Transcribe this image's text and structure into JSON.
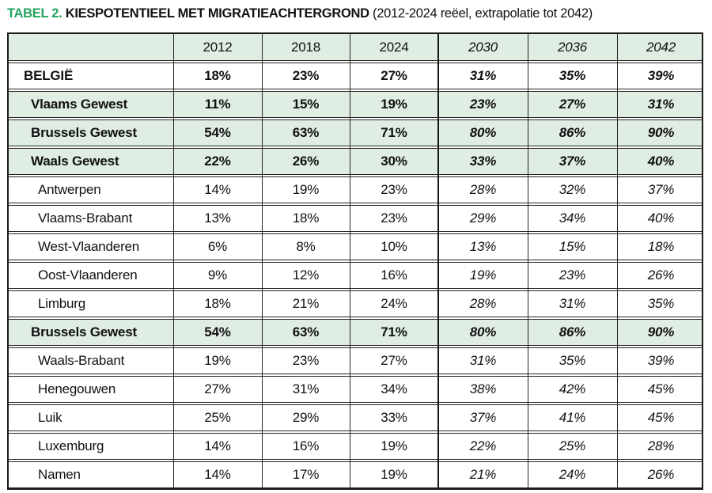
{
  "caption": {
    "tag": "TABEL 2.",
    "heading": "KIESPOTENTIEEL MET MIGRATIEACHTERGROND",
    "subtitle": "(2012-2024 reëel, extrapolatie tot 2042)"
  },
  "colors": {
    "accent_green": "#21a45d",
    "row_highlight_green": "#dfede3",
    "border": "#242424",
    "text": "#111111"
  },
  "table": {
    "column_headers": [
      "",
      "2012",
      "2018",
      "2024",
      "2030",
      "2036",
      "2042"
    ],
    "extrapolated_from_column_index": 4,
    "rows": [
      {
        "label": "BELGIË",
        "level": "country",
        "emphasis": "bold",
        "highlight": false,
        "values": [
          "18%",
          "23%",
          "27%",
          "31%",
          "35%",
          "39%"
        ]
      },
      {
        "label": "Vlaams Gewest",
        "level": "region",
        "emphasis": "bold",
        "highlight": true,
        "values": [
          "11%",
          "15%",
          "19%",
          "23%",
          "27%",
          "31%"
        ]
      },
      {
        "label": "Brussels Gewest",
        "level": "region",
        "emphasis": "bold",
        "highlight": true,
        "values": [
          "54%",
          "63%",
          "71%",
          "80%",
          "86%",
          "90%"
        ]
      },
      {
        "label": "Waals Gewest",
        "level": "region",
        "emphasis": "bold",
        "highlight": true,
        "values": [
          "22%",
          "26%",
          "30%",
          "33%",
          "37%",
          "40%"
        ]
      },
      {
        "label": "Antwerpen",
        "level": "province",
        "emphasis": "regular",
        "highlight": false,
        "values": [
          "14%",
          "19%",
          "23%",
          "28%",
          "32%",
          "37%"
        ]
      },
      {
        "label": "Vlaams-Brabant",
        "level": "province",
        "emphasis": "regular",
        "highlight": false,
        "values": [
          "13%",
          "18%",
          "23%",
          "29%",
          "34%",
          "40%"
        ]
      },
      {
        "label": "West-Vlaanderen",
        "level": "province",
        "emphasis": "regular",
        "highlight": false,
        "values": [
          "6%",
          "8%",
          "10%",
          "13%",
          "15%",
          "18%"
        ]
      },
      {
        "label": "Oost-Vlaanderen",
        "level": "province",
        "emphasis": "regular",
        "highlight": false,
        "values": [
          "9%",
          "12%",
          "16%",
          "19%",
          "23%",
          "26%"
        ]
      },
      {
        "label": "Limburg",
        "level": "province",
        "emphasis": "regular",
        "highlight": false,
        "values": [
          "18%",
          "21%",
          "24%",
          "28%",
          "31%",
          "35%"
        ]
      },
      {
        "label": "Brussels Gewest",
        "level": "region",
        "emphasis": "bold",
        "highlight": true,
        "values": [
          "54%",
          "63%",
          "71%",
          "80%",
          "86%",
          "90%"
        ]
      },
      {
        "label": "Waals-Brabant",
        "level": "province",
        "emphasis": "regular",
        "highlight": false,
        "values": [
          "19%",
          "23%",
          "27%",
          "31%",
          "35%",
          "39%"
        ]
      },
      {
        "label": "Henegouwen",
        "level": "province",
        "emphasis": "regular",
        "highlight": false,
        "values": [
          "27%",
          "31%",
          "34%",
          "38%",
          "42%",
          "45%"
        ]
      },
      {
        "label": "Luik",
        "level": "province",
        "emphasis": "regular",
        "highlight": false,
        "values": [
          "25%",
          "29%",
          "33%",
          "37%",
          "41%",
          "45%"
        ]
      },
      {
        "label": "Luxemburg",
        "level": "province",
        "emphasis": "regular",
        "highlight": false,
        "values": [
          "14%",
          "16%",
          "19%",
          "22%",
          "25%",
          "28%"
        ]
      },
      {
        "label": "Namen",
        "level": "province",
        "emphasis": "regular",
        "highlight": false,
        "values": [
          "14%",
          "17%",
          "19%",
          "21%",
          "24%",
          "26%"
        ]
      }
    ]
  },
  "chart_data": {
    "type": "table",
    "title": "TABEL 2. KIESPOTENTIEEL MET MIGRATIEACHTERGROND (2012-2024 reëel, extrapolatie tot 2042)",
    "x": [
      2012,
      2018,
      2024,
      2030,
      2036,
      2042
    ],
    "x_real": [
      2012,
      2018,
      2024
    ],
    "x_extrapolated": [
      2030,
      2036,
      2042
    ],
    "unit": "percent",
    "series": [
      {
        "name": "BELGIË",
        "values": [
          18,
          23,
          27,
          31,
          35,
          39
        ]
      },
      {
        "name": "Vlaams Gewest",
        "values": [
          11,
          15,
          19,
          23,
          27,
          31
        ]
      },
      {
        "name": "Brussels Gewest",
        "values": [
          54,
          63,
          71,
          80,
          86,
          90
        ]
      },
      {
        "name": "Waals Gewest",
        "values": [
          22,
          26,
          30,
          33,
          37,
          40
        ]
      },
      {
        "name": "Antwerpen",
        "values": [
          14,
          19,
          23,
          28,
          32,
          37
        ]
      },
      {
        "name": "Vlaams-Brabant",
        "values": [
          13,
          18,
          23,
          29,
          34,
          40
        ]
      },
      {
        "name": "West-Vlaanderen",
        "values": [
          6,
          8,
          10,
          13,
          15,
          18
        ]
      },
      {
        "name": "Oost-Vlaanderen",
        "values": [
          9,
          12,
          16,
          19,
          23,
          26
        ]
      },
      {
        "name": "Limburg",
        "values": [
          18,
          21,
          24,
          28,
          31,
          35
        ]
      },
      {
        "name": "Brussels Gewest",
        "values": [
          54,
          63,
          71,
          80,
          86,
          90
        ]
      },
      {
        "name": "Waals-Brabant",
        "values": [
          19,
          23,
          27,
          31,
          35,
          39
        ]
      },
      {
        "name": "Henegouwen",
        "values": [
          27,
          31,
          34,
          38,
          42,
          45
        ]
      },
      {
        "name": "Luik",
        "values": [
          25,
          29,
          33,
          37,
          41,
          45
        ]
      },
      {
        "name": "Luxemburg",
        "values": [
          14,
          16,
          19,
          22,
          25,
          28
        ]
      },
      {
        "name": "Namen",
        "values": [
          14,
          17,
          19,
          21,
          24,
          26
        ]
      }
    ]
  }
}
